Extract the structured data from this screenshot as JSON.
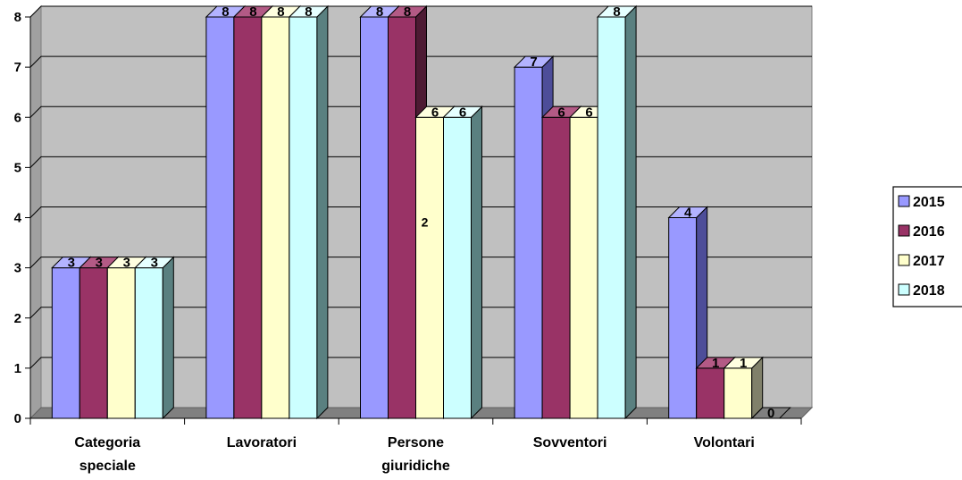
{
  "chart_data": {
    "type": "bar",
    "style": "3d-clustered-column",
    "categories": [
      "Categoria speciale",
      "Lavoratori",
      "Persone giuridiche",
      "Sovventori",
      "Volontari"
    ],
    "series": [
      {
        "name": "2015",
        "values": [
          3,
          8,
          8,
          7,
          4
        ],
        "color": "#9999ff",
        "side": "#4d4d99",
        "top": "#b3b3ff"
      },
      {
        "name": "2016",
        "values": [
          3,
          8,
          8,
          6,
          1
        ],
        "color": "#993366",
        "side": "#4d1a33",
        "top": "#b35a85"
      },
      {
        "name": "2017",
        "values": [
          3,
          8,
          6,
          6,
          1
        ],
        "color": "#ffffcc",
        "side": "#80806a",
        "top": "#ffffe0"
      },
      {
        "name": "2018",
        "values": [
          3,
          8,
          6,
          8,
          0
        ],
        "color": "#ccffff",
        "side": "#5a8080",
        "top": "#e6ffff"
      }
    ],
    "ylim": [
      0,
      8
    ],
    "yticks": [
      "0",
      "1",
      "2",
      "3",
      "4",
      "5",
      "6",
      "7",
      "8"
    ],
    "grid": true,
    "plot_background": "#c0c0c0",
    "legend_position": "right",
    "annotations": [
      {
        "text": "2",
        "category": "Persone giuridiche",
        "y": 4
      }
    ]
  }
}
